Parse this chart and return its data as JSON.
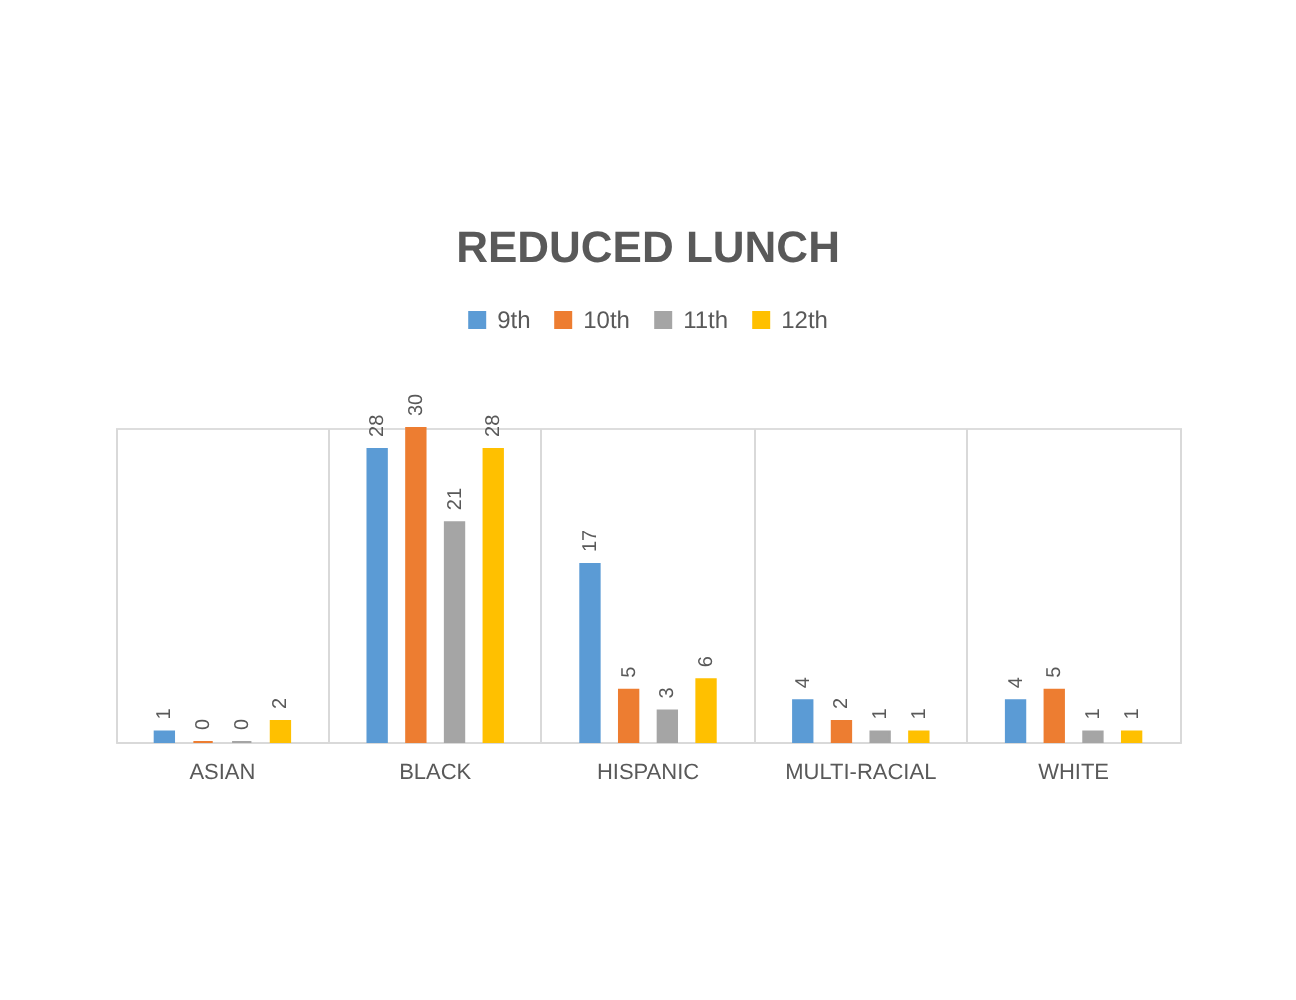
{
  "chart_data": {
    "type": "bar",
    "title": "REDUCED LUNCH",
    "categories": [
      "ASIAN",
      "BLACK",
      "HISPANIC",
      "MULTI-RACIAL",
      "WHITE"
    ],
    "series": [
      {
        "name": "9th",
        "color": "#5b9bd5",
        "values": [
          1,
          28,
          17,
          4,
          4
        ]
      },
      {
        "name": "10th",
        "color": "#ed7d31",
        "values": [
          0,
          30,
          5,
          2,
          5
        ]
      },
      {
        "name": "11th",
        "color": "#a5a5a5",
        "values": [
          0,
          21,
          3,
          1,
          1
        ]
      },
      {
        "name": "12th",
        "color": "#ffc000",
        "values": [
          2,
          28,
          6,
          1,
          1
        ]
      }
    ],
    "data_labels": true,
    "legend": "top",
    "grid": "x",
    "tick_labels": "x"
  }
}
